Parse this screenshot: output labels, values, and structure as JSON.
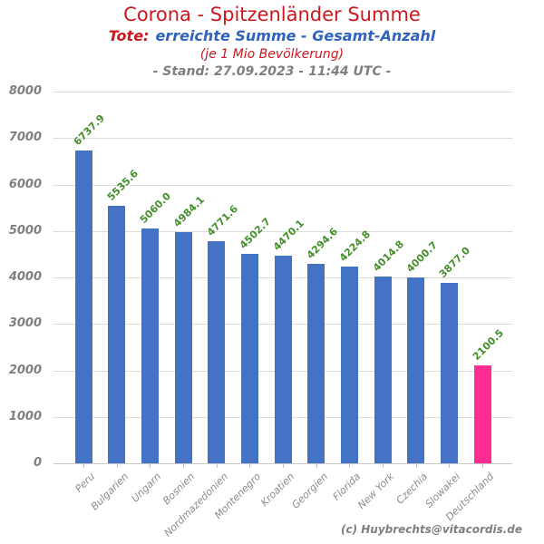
{
  "header": {
    "title": "Corona - Spitzenländer Summe",
    "subtitle_prefix": "Tote:",
    "subtitle_main": "erreichte Summe - Gesamt-Anzahl",
    "subtitle_note": "(je 1 Mio Bevölkerung)",
    "stand_line": "- Stand: 27.09.2023 - 11:44 UTC -"
  },
  "footer": {
    "credit": "(c) Huybrechts@vitacordis.de"
  },
  "chart_data": {
    "type": "bar",
    "title": "Corona - Spitzenländer Summe",
    "subtitle": "Tote: erreichte Summe - Gesamt-Anzahl (je 1 Mio Bevölkerung)",
    "as_of": "27.09.2023 - 11:44 UTC",
    "categories": [
      "Peru",
      "Bulgarien",
      "Ungarn",
      "Bosnien",
      "Nordmazedonien",
      "Montenegro",
      "Kroatien",
      "Georgien",
      "Florida",
      "New York",
      "Czechia",
      "Slowakei",
      "Deutschland"
    ],
    "values": [
      6737.9,
      5535.6,
      5060.0,
      4984.1,
      4771.6,
      4502.7,
      4470.1,
      4294.6,
      4224.8,
      4014.8,
      4000.7,
      3877.0,
      2100.5
    ],
    "value_labels": [
      "6737.9",
      "5535.6",
      "5060.0",
      "4984.1",
      "4771.6",
      "4502.7",
      "4470.1",
      "4294.6",
      "4224.8",
      "4014.8",
      "4000.7",
      "3877.0",
      "2100.5"
    ],
    "bar_colors": [
      "#4472C4",
      "#4472C4",
      "#4472C4",
      "#4472C4",
      "#4472C4",
      "#4472C4",
      "#4472C4",
      "#4472C4",
      "#4472C4",
      "#4472C4",
      "#4472C4",
      "#4472C4",
      "#FF2D92"
    ],
    "xlabel": "",
    "ylabel": "",
    "ylim": [
      0,
      8000
    ],
    "ytick_interval": 1000,
    "yticks": [
      0,
      1000,
      2000,
      3000,
      4000,
      5000,
      6000,
      7000,
      8000
    ],
    "grid": true,
    "legend": "none",
    "value_label_rotation_deg": 45,
    "xtick_label_rotation_deg": 45,
    "colors": {
      "title_red": "#CC181E",
      "subtitle_blue": "#2F63BE",
      "muted_gray": "#7F7F7F",
      "axis_label_gray": "#8C8C8C",
      "bar_blue": "#4472C4",
      "bar_highlight_pink": "#FF2D92",
      "value_label_green": "#448F2B",
      "gridline_gray": "#DCDCDC"
    }
  }
}
